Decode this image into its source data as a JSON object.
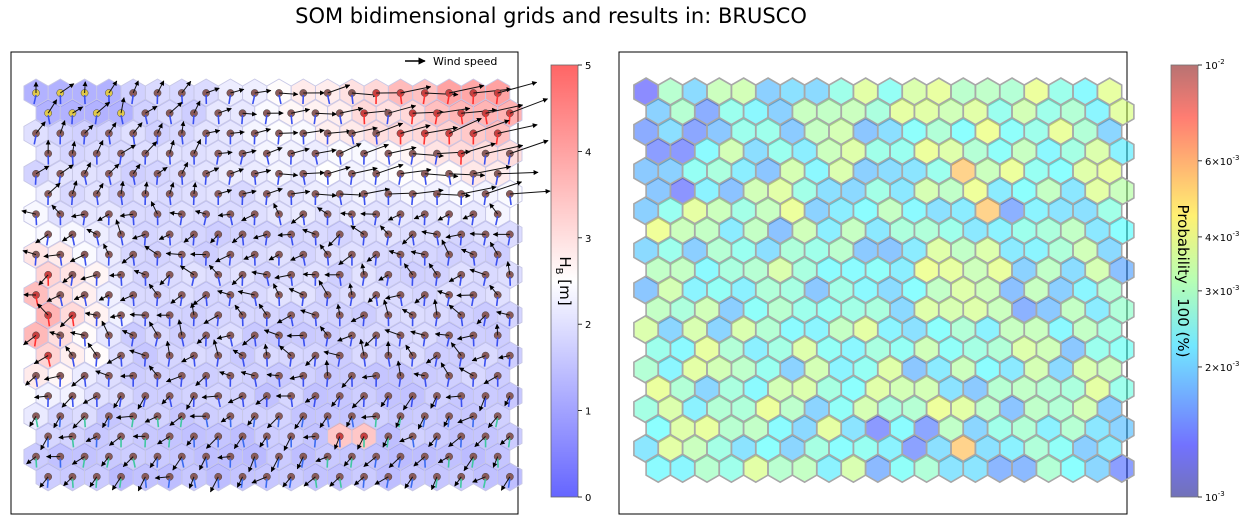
{
  "figure": {
    "title": "SOM bidimensional grids and results in: BRUSCO"
  },
  "chart_data": [
    {
      "type": "heatmap",
      "grid": {
        "rows": 20,
        "cols": 20,
        "shape": "hexagonal"
      },
      "colorbar": {
        "label": "H_B [m]",
        "label_main": "H",
        "label_sub": "B",
        "label_unit": " [m]",
        "min": 0,
        "max": 5,
        "ticks": [
          "0",
          "1",
          "2",
          "3",
          "4",
          "5"
        ],
        "colormap": "bwr",
        "colors": {
          "low": "#0000ff",
          "mid": "#ffffff",
          "high": "#ff0000"
        }
      },
      "legend": {
        "label": "Wind speed",
        "position": "top-right"
      },
      "overlays": [
        "wind-speed arrows",
        "wave direction arrows",
        "node markers"
      ],
      "values_description": "Hs per node estimated; high (red) at top-right and left edge, low (blue) in center and bottom"
    },
    {
      "type": "heatmap",
      "grid": {
        "rows": 20,
        "cols": 20,
        "shape": "hexagonal"
      },
      "colorbar": {
        "label": "Probability · 100 (%)",
        "scale": "log",
        "min": 0.001,
        "max": 0.01,
        "ticks": [
          "10^-3",
          "2×10^-3",
          "3×10^-3",
          "4×10^-3",
          "6×10^-3",
          "10^-2"
        ],
        "tick_values": [
          0.001,
          0.002,
          0.003,
          0.004,
          0.006,
          0.01
        ],
        "colormap": "jet"
      }
    }
  ]
}
